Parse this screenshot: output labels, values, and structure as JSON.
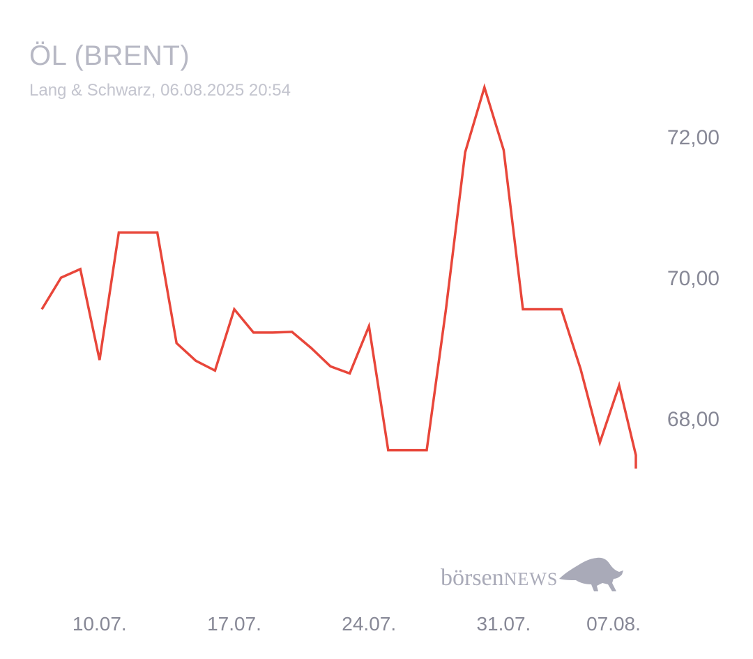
{
  "header": {
    "title": "ÖL (BRENT)",
    "subtitle": "Lang & Schwarz, 06.08.2025 20:54"
  },
  "brand": {
    "logo_text_1": "börsen",
    "logo_text_2": "NEWS",
    "logo_icon": "bull-icon"
  },
  "colors": {
    "line": "#e8463a",
    "text_muted": "#878896",
    "title": "#b7b8c4"
  },
  "chart_data": {
    "type": "line",
    "title": "ÖL (BRENT)",
    "subtitle": "Lang & Schwarz, 06.08.2025 20:54",
    "x_ticks": [
      {
        "date": "2025-07-10",
        "label": "10.07."
      },
      {
        "date": "2025-07-17",
        "label": "17.07."
      },
      {
        "date": "2025-07-24",
        "label": "24.07."
      },
      {
        "date": "2025-07-31",
        "label": "31.07."
      },
      {
        "date": "2025-08-07",
        "label": "07.08."
      }
    ],
    "y_ticks": [
      {
        "value": 72,
        "label": "72,00"
      },
      {
        "value": 70,
        "label": "70,00"
      },
      {
        "value": 68,
        "label": "68,00"
      }
    ],
    "ylim": [
      66.2,
      72.95
    ],
    "grid": false,
    "y_axis_position": "right",
    "series": [
      {
        "color": "#e8463a",
        "points": [
          {
            "x": "2025-07-07",
            "y": 69.55
          },
          {
            "x": "2025-07-08",
            "y": 70.0
          },
          {
            "x": "2025-07-09",
            "y": 70.12
          },
          {
            "x": "2025-07-10",
            "y": 68.83
          },
          {
            "x": "2025-07-11",
            "y": 70.64
          },
          {
            "x": "2025-07-12",
            "y": 70.64
          },
          {
            "x": "2025-07-13",
            "y": 70.64
          },
          {
            "x": "2025-07-14",
            "y": 69.07
          },
          {
            "x": "2025-07-15",
            "y": 68.82
          },
          {
            "x": "2025-07-16",
            "y": 68.68
          },
          {
            "x": "2025-07-17",
            "y": 69.55
          },
          {
            "x": "2025-07-18",
            "y": 69.22
          },
          {
            "x": "2025-07-19",
            "y": 69.22
          },
          {
            "x": "2025-07-20",
            "y": 69.23
          },
          {
            "x": "2025-07-21",
            "y": 69.0
          },
          {
            "x": "2025-07-22",
            "y": 68.74
          },
          {
            "x": "2025-07-23",
            "y": 68.64
          },
          {
            "x": "2025-07-24",
            "y": 69.31
          },
          {
            "x": "2025-07-25",
            "y": 67.55
          },
          {
            "x": "2025-07-26",
            "y": 67.55
          },
          {
            "x": "2025-07-27",
            "y": 67.55
          },
          {
            "x": "2025-07-28",
            "y": 69.55
          },
          {
            "x": "2025-07-29",
            "y": 71.78
          },
          {
            "x": "2025-07-30",
            "y": 72.7
          },
          {
            "x": "2025-07-31",
            "y": 71.81
          },
          {
            "x": "2025-08-01",
            "y": 69.55
          },
          {
            "x": "2025-08-02",
            "y": 69.55
          },
          {
            "x": "2025-08-03",
            "y": 69.55
          },
          {
            "x": "2025-08-04",
            "y": 68.7
          },
          {
            "x": "2025-08-05",
            "y": 67.66
          },
          {
            "x": "2025-08-06",
            "y": 68.47
          },
          {
            "x": "2025-08-06 20:54",
            "y": 67.48
          },
          {
            "x": "2025-08-06 20:54",
            "y": 67.29
          }
        ]
      }
    ]
  }
}
